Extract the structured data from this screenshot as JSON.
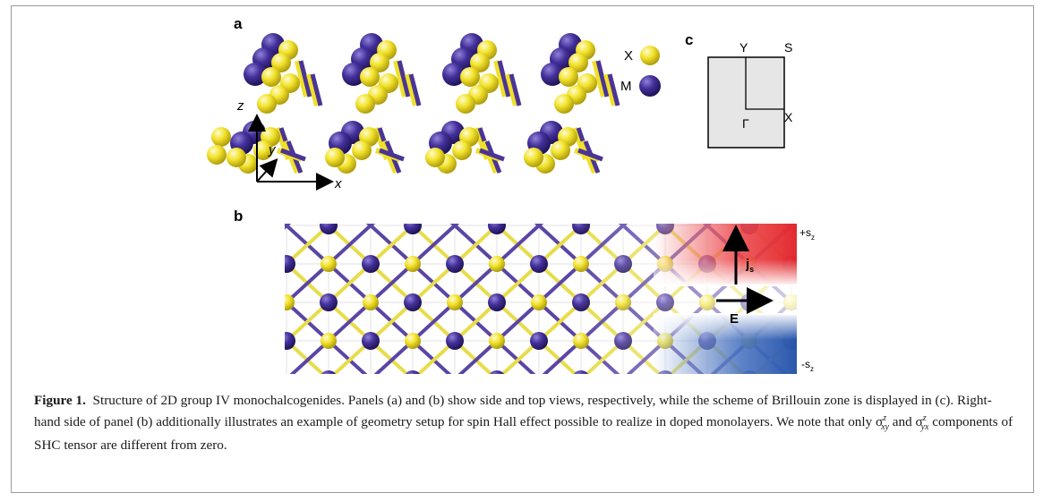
{
  "panels": {
    "a": "a",
    "b": "b",
    "c": "c"
  },
  "legend": {
    "x_label": "X",
    "m_label": "M"
  },
  "axes": {
    "z": "z",
    "y": "y",
    "x": "x"
  },
  "brillouin": {
    "y": "Y",
    "s": "S",
    "gamma": "Γ",
    "x": "X"
  },
  "spin_hall": {
    "plus": "+s",
    "minus": "-s",
    "sub": "z",
    "js_main": "j",
    "js_sub": "s",
    "e_label": "E"
  },
  "caption": {
    "label": "Figure 1.",
    "text": "Structure of 2D group IV monochalcogenides. Panels (a) and (b) show side and top views, respectively, while the scheme of Brillouin zone is displayed in (c). Right-hand side of panel (b) additionally illustrates an example of geometry setup for spin Hall effect possible to realize in doped monolayers. We note that only σ",
    "sigma_xy_sup": "z",
    "sigma_xy_sub": "xy",
    "mid": " and σ",
    "sigma_yx_sup": "z",
    "sigma_yx_sub": "yx",
    "end": " components of SHC tensor are different from zero."
  },
  "colors": {
    "chalcogen": "#f0e02a",
    "metal": "#3f2a8c",
    "bond_metal": "#4a3596",
    "spin_up": "#e8262a",
    "spin_down": "#2a5bb5"
  }
}
